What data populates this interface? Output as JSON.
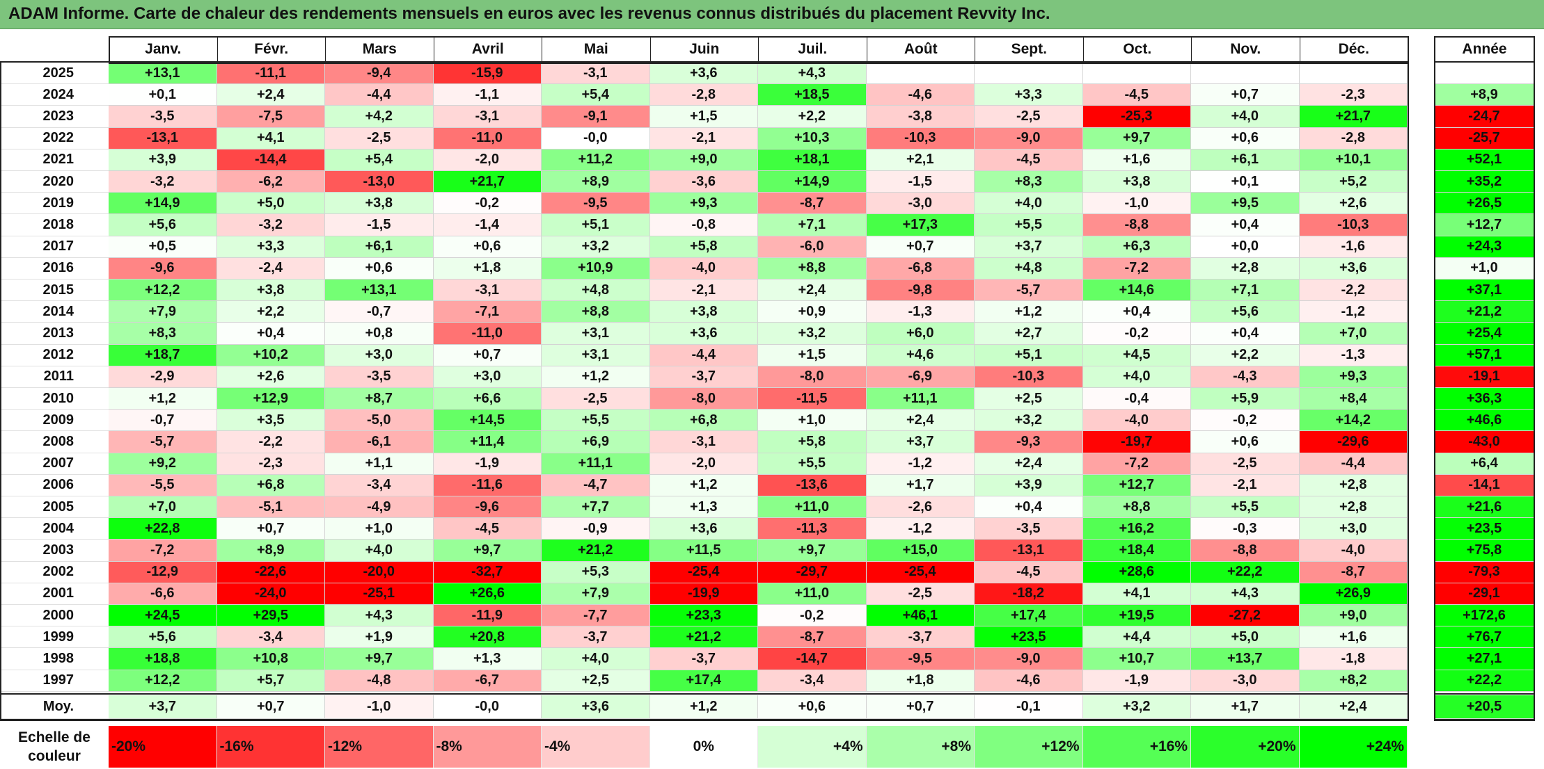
{
  "title": "ADAM Informe. Carte de chaleur des rendements mensuels en euros avec les revenus connus distribués du placement Revvity Inc.",
  "months": [
    "Janv.",
    "Févr.",
    "Mars",
    "Avril",
    "Mai",
    "Juin",
    "Juil.",
    "Août",
    "Sept.",
    "Oct.",
    "Nov.",
    "Déc."
  ],
  "annual_header": "Année",
  "avg_label": "Moy.",
  "scale_label_line1": "Echelle de",
  "scale_label_line2": "couleur",
  "scale_ticks": [
    "-20%",
    "-16%",
    "-12%",
    "-8%",
    "-4%",
    "0%",
    "+4%",
    "+8%",
    "+12%",
    "+16%",
    "+20%",
    "+24%"
  ],
  "colors": {
    "max_red": "#ff0000",
    "white": "#ffffff",
    "max_green": "#00ff00",
    "title_bg": "#7dc47d"
  },
  "chart_data": {
    "type": "heatmap",
    "rows": [
      {
        "year": "2025",
        "monthly": [
          "+13,1",
          "-11,1",
          "-9,4",
          "-15,9",
          "-3,1",
          "+3,6",
          "+4,3",
          "",
          "",
          "",
          "",
          ""
        ],
        "annual": ""
      },
      {
        "year": "2024",
        "monthly": [
          "+0,1",
          "+2,4",
          "-4,4",
          "-1,1",
          "+5,4",
          "-2,8",
          "+18,5",
          "-4,6",
          "+3,3",
          "-4,5",
          "+0,7",
          "-2,3"
        ],
        "annual": "+8,9"
      },
      {
        "year": "2023",
        "monthly": [
          "-3,5",
          "-7,5",
          "+4,2",
          "-3,1",
          "-9,1",
          "+1,5",
          "+2,2",
          "-3,8",
          "-2,5",
          "-25,3",
          "+4,0",
          "+21,7"
        ],
        "annual": "-24,7"
      },
      {
        "year": "2022",
        "monthly": [
          "-13,1",
          "+4,1",
          "-2,5",
          "-11,0",
          "-0,0",
          "-2,1",
          "+10,3",
          "-10,3",
          "-9,0",
          "+9,7",
          "+0,6",
          "-2,8"
        ],
        "annual": "-25,7"
      },
      {
        "year": "2021",
        "monthly": [
          "+3,9",
          "-14,4",
          "+5,4",
          "-2,0",
          "+11,2",
          "+9,0",
          "+18,1",
          "+2,1",
          "-4,5",
          "+1,6",
          "+6,1",
          "+10,1"
        ],
        "annual": "+52,1"
      },
      {
        "year": "2020",
        "monthly": [
          "-3,2",
          "-6,2",
          "-13,0",
          "+21,7",
          "+8,9",
          "-3,6",
          "+14,9",
          "-1,5",
          "+8,3",
          "+3,8",
          "+0,1",
          "+5,2"
        ],
        "annual": "+35,2"
      },
      {
        "year": "2019",
        "monthly": [
          "+14,9",
          "+5,0",
          "+3,8",
          "-0,2",
          "-9,5",
          "+9,3",
          "-8,7",
          "-3,0",
          "+4,0",
          "-1,0",
          "+9,5",
          "+2,6"
        ],
        "annual": "+26,5"
      },
      {
        "year": "2018",
        "monthly": [
          "+5,6",
          "-3,2",
          "-1,5",
          "-1,4",
          "+5,1",
          "-0,8",
          "+7,1",
          "+17,3",
          "+5,5",
          "-8,8",
          "+0,4",
          "-10,3"
        ],
        "annual": "+12,7"
      },
      {
        "year": "2017",
        "monthly": [
          "+0,5",
          "+3,3",
          "+6,1",
          "+0,6",
          "+3,2",
          "+5,8",
          "-6,0",
          "+0,7",
          "+3,7",
          "+6,3",
          "+0,0",
          "-1,6"
        ],
        "annual": "+24,3"
      },
      {
        "year": "2016",
        "monthly": [
          "-9,6",
          "-2,4",
          "+0,6",
          "+1,8",
          "+10,9",
          "-4,0",
          "+8,8",
          "-6,8",
          "+4,8",
          "-7,2",
          "+2,8",
          "+3,6"
        ],
        "annual": "+1,0"
      },
      {
        "year": "2015",
        "monthly": [
          "+12,2",
          "+3,8",
          "+13,1",
          "-3,1",
          "+4,8",
          "-2,1",
          "+2,4",
          "-9,8",
          "-5,7",
          "+14,6",
          "+7,1",
          "-2,2"
        ],
        "annual": "+37,1"
      },
      {
        "year": "2014",
        "monthly": [
          "+7,9",
          "+2,2",
          "-0,7",
          "-7,1",
          "+8,8",
          "+3,8",
          "+0,9",
          "-1,3",
          "+1,2",
          "+0,4",
          "+5,6",
          "-1,2"
        ],
        "annual": "+21,2"
      },
      {
        "year": "2013",
        "monthly": [
          "+8,3",
          "+0,4",
          "+0,8",
          "-11,0",
          "+3,1",
          "+3,6",
          "+3,2",
          "+6,0",
          "+2,7",
          "-0,2",
          "+0,4",
          "+7,0"
        ],
        "annual": "+25,4"
      },
      {
        "year": "2012",
        "monthly": [
          "+18,7",
          "+10,2",
          "+3,0",
          "+0,7",
          "+3,1",
          "-4,4",
          "+1,5",
          "+4,6",
          "+5,1",
          "+4,5",
          "+2,2",
          "-1,3"
        ],
        "annual": "+57,1"
      },
      {
        "year": "2011",
        "monthly": [
          "-2,9",
          "+2,6",
          "-3,5",
          "+3,0",
          "+1,2",
          "-3,7",
          "-8,0",
          "-6,9",
          "-10,3",
          "+4,0",
          "-4,3",
          "+9,3"
        ],
        "annual": "-19,1"
      },
      {
        "year": "2010",
        "monthly": [
          "+1,2",
          "+12,9",
          "+8,7",
          "+6,6",
          "-2,5",
          "-8,0",
          "-11,5",
          "+11,1",
          "+2,5",
          "-0,4",
          "+5,9",
          "+8,4"
        ],
        "annual": "+36,3"
      },
      {
        "year": "2009",
        "monthly": [
          "-0,7",
          "+3,5",
          "-5,0",
          "+14,5",
          "+5,5",
          "+6,8",
          "+1,0",
          "+2,4",
          "+3,2",
          "-4,0",
          "-0,2",
          "+14,2"
        ],
        "annual": "+46,6"
      },
      {
        "year": "2008",
        "monthly": [
          "-5,7",
          "-2,2",
          "-6,1",
          "+11,4",
          "+6,9",
          "-3,1",
          "+5,8",
          "+3,7",
          "-9,3",
          "-19,7",
          "+0,6",
          "-29,6"
        ],
        "annual": "-43,0"
      },
      {
        "year": "2007",
        "monthly": [
          "+9,2",
          "-2,3",
          "+1,1",
          "-1,9",
          "+11,1",
          "-2,0",
          "+5,5",
          "-1,2",
          "+2,4",
          "-7,2",
          "-2,5",
          "-4,4"
        ],
        "annual": "+6,4"
      },
      {
        "year": "2006",
        "monthly": [
          "-5,5",
          "+6,8",
          "-3,4",
          "-11,6",
          "-4,7",
          "+1,2",
          "-13,6",
          "+1,7",
          "+3,9",
          "+12,7",
          "-2,1",
          "+2,8"
        ],
        "annual": "-14,1"
      },
      {
        "year": "2005",
        "monthly": [
          "+7,0",
          "-5,1",
          "-4,9",
          "-9,6",
          "+7,7",
          "+1,3",
          "+11,0",
          "-2,6",
          "+0,4",
          "+8,8",
          "+5,5",
          "+2,8"
        ],
        "annual": "+21,6"
      },
      {
        "year": "2004",
        "monthly": [
          "+22,8",
          "+0,7",
          "+1,0",
          "-4,5",
          "-0,9",
          "+3,6",
          "-11,3",
          "-1,2",
          "-3,5",
          "+16,2",
          "-0,3",
          "+3,0"
        ],
        "annual": "+23,5"
      },
      {
        "year": "2003",
        "monthly": [
          "-7,2",
          "+8,9",
          "+4,0",
          "+9,7",
          "+21,2",
          "+11,5",
          "+9,7",
          "+15,0",
          "-13,1",
          "+18,4",
          "-8,8",
          "-4,0"
        ],
        "annual": "+75,8"
      },
      {
        "year": "2002",
        "monthly": [
          "-12,9",
          "-22,6",
          "-20,0",
          "-32,7",
          "+5,3",
          "-25,4",
          "-29,7",
          "-25,4",
          "-4,5",
          "+28,6",
          "+22,2",
          "-8,7"
        ],
        "annual": "-79,3"
      },
      {
        "year": "2001",
        "monthly": [
          "-6,6",
          "-24,0",
          "-25,1",
          "+26,6",
          "+7,9",
          "-19,9",
          "+11,0",
          "-2,5",
          "-18,2",
          "+4,1",
          "+4,3",
          "+26,9"
        ],
        "annual": "-29,1"
      },
      {
        "year": "2000",
        "monthly": [
          "+24,5",
          "+29,5",
          "+4,3",
          "-11,9",
          "-7,7",
          "+23,3",
          "-0,2",
          "+46,1",
          "+17,4",
          "+19,5",
          "-27,2",
          "+9,0"
        ],
        "annual": "+172,6"
      },
      {
        "year": "1999",
        "monthly": [
          "+5,6",
          "-3,4",
          "+1,9",
          "+20,8",
          "-3,7",
          "+21,2",
          "-8,7",
          "-3,7",
          "+23,5",
          "+4,4",
          "+5,0",
          "+1,6"
        ],
        "annual": "+76,7"
      },
      {
        "year": "1998",
        "monthly": [
          "+18,8",
          "+10,8",
          "+9,7",
          "+1,3",
          "+4,0",
          "-3,7",
          "-14,7",
          "-9,5",
          "-9,0",
          "+10,7",
          "+13,7",
          "-1,8"
        ],
        "annual": "+27,1"
      },
      {
        "year": "1997",
        "monthly": [
          "+12,2",
          "+5,7",
          "-4,8",
          "-6,7",
          "+2,5",
          "+17,4",
          "-3,4",
          "+1,8",
          "-4,6",
          "-1,9",
          "-3,0",
          "+8,2"
        ],
        "annual": "+22,2"
      }
    ],
    "averages": [
      "+3,7",
      "+0,7",
      "-1,0",
      "-0,0",
      "+3,6",
      "+1,2",
      "+0,6",
      "+0,7",
      "-0,1",
      "+3,2",
      "+1,7",
      "+2,4"
    ],
    "average_annual": "+20,5",
    "color_scale_range": [
      -20,
      24
    ]
  }
}
